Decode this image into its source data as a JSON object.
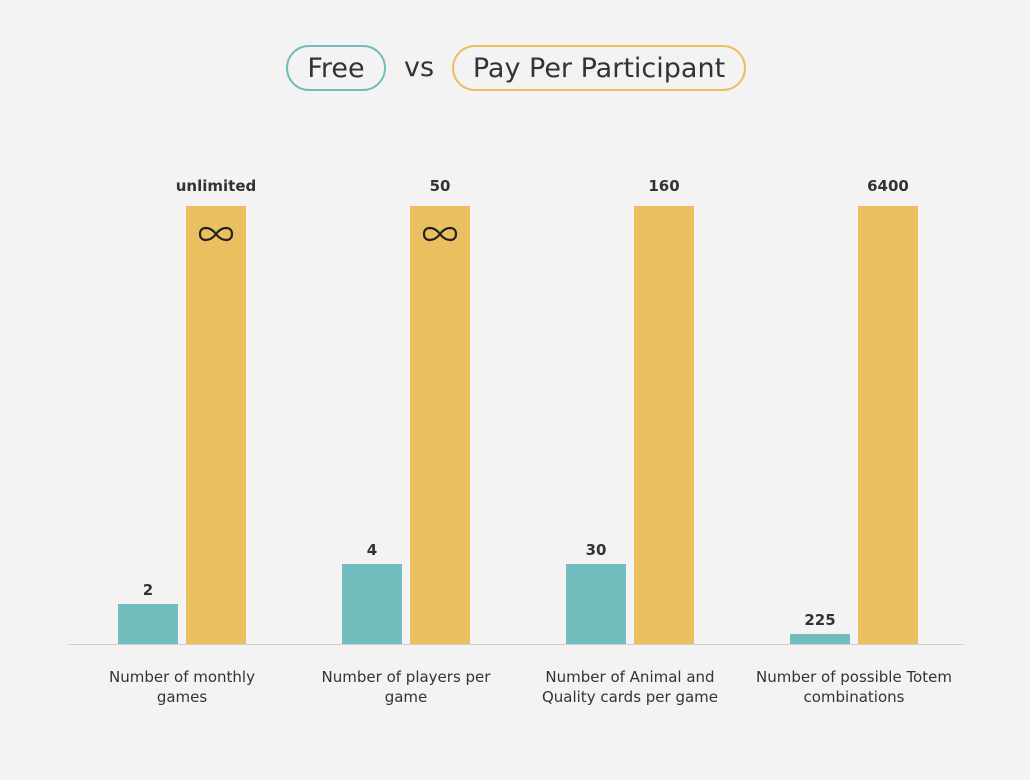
{
  "legend": {
    "free": "Free",
    "vs": "vs",
    "pay": "Pay Per Participant"
  },
  "chart_data": {
    "type": "bar",
    "categories": [
      "Number of monthly games",
      "Number of players per game",
      "Number of Animal and Quality cards per game",
      "Number of possible Totem combinations"
    ],
    "series": [
      {
        "name": "Free",
        "color": "#72bcbe",
        "values": [
          2,
          4,
          30,
          225
        ],
        "labels": [
          "2",
          "4",
          "30",
          "225"
        ]
      },
      {
        "name": "Pay Per Participant",
        "color": "#e9bf5f",
        "values": [
          "unlimited",
          50,
          160,
          6400
        ],
        "labels": [
          "unlimited",
          "50",
          "160",
          "6400"
        ]
      }
    ],
    "infinity_icon_on": [
      0,
      1
    ],
    "note": "bars not drawn to scale"
  }
}
